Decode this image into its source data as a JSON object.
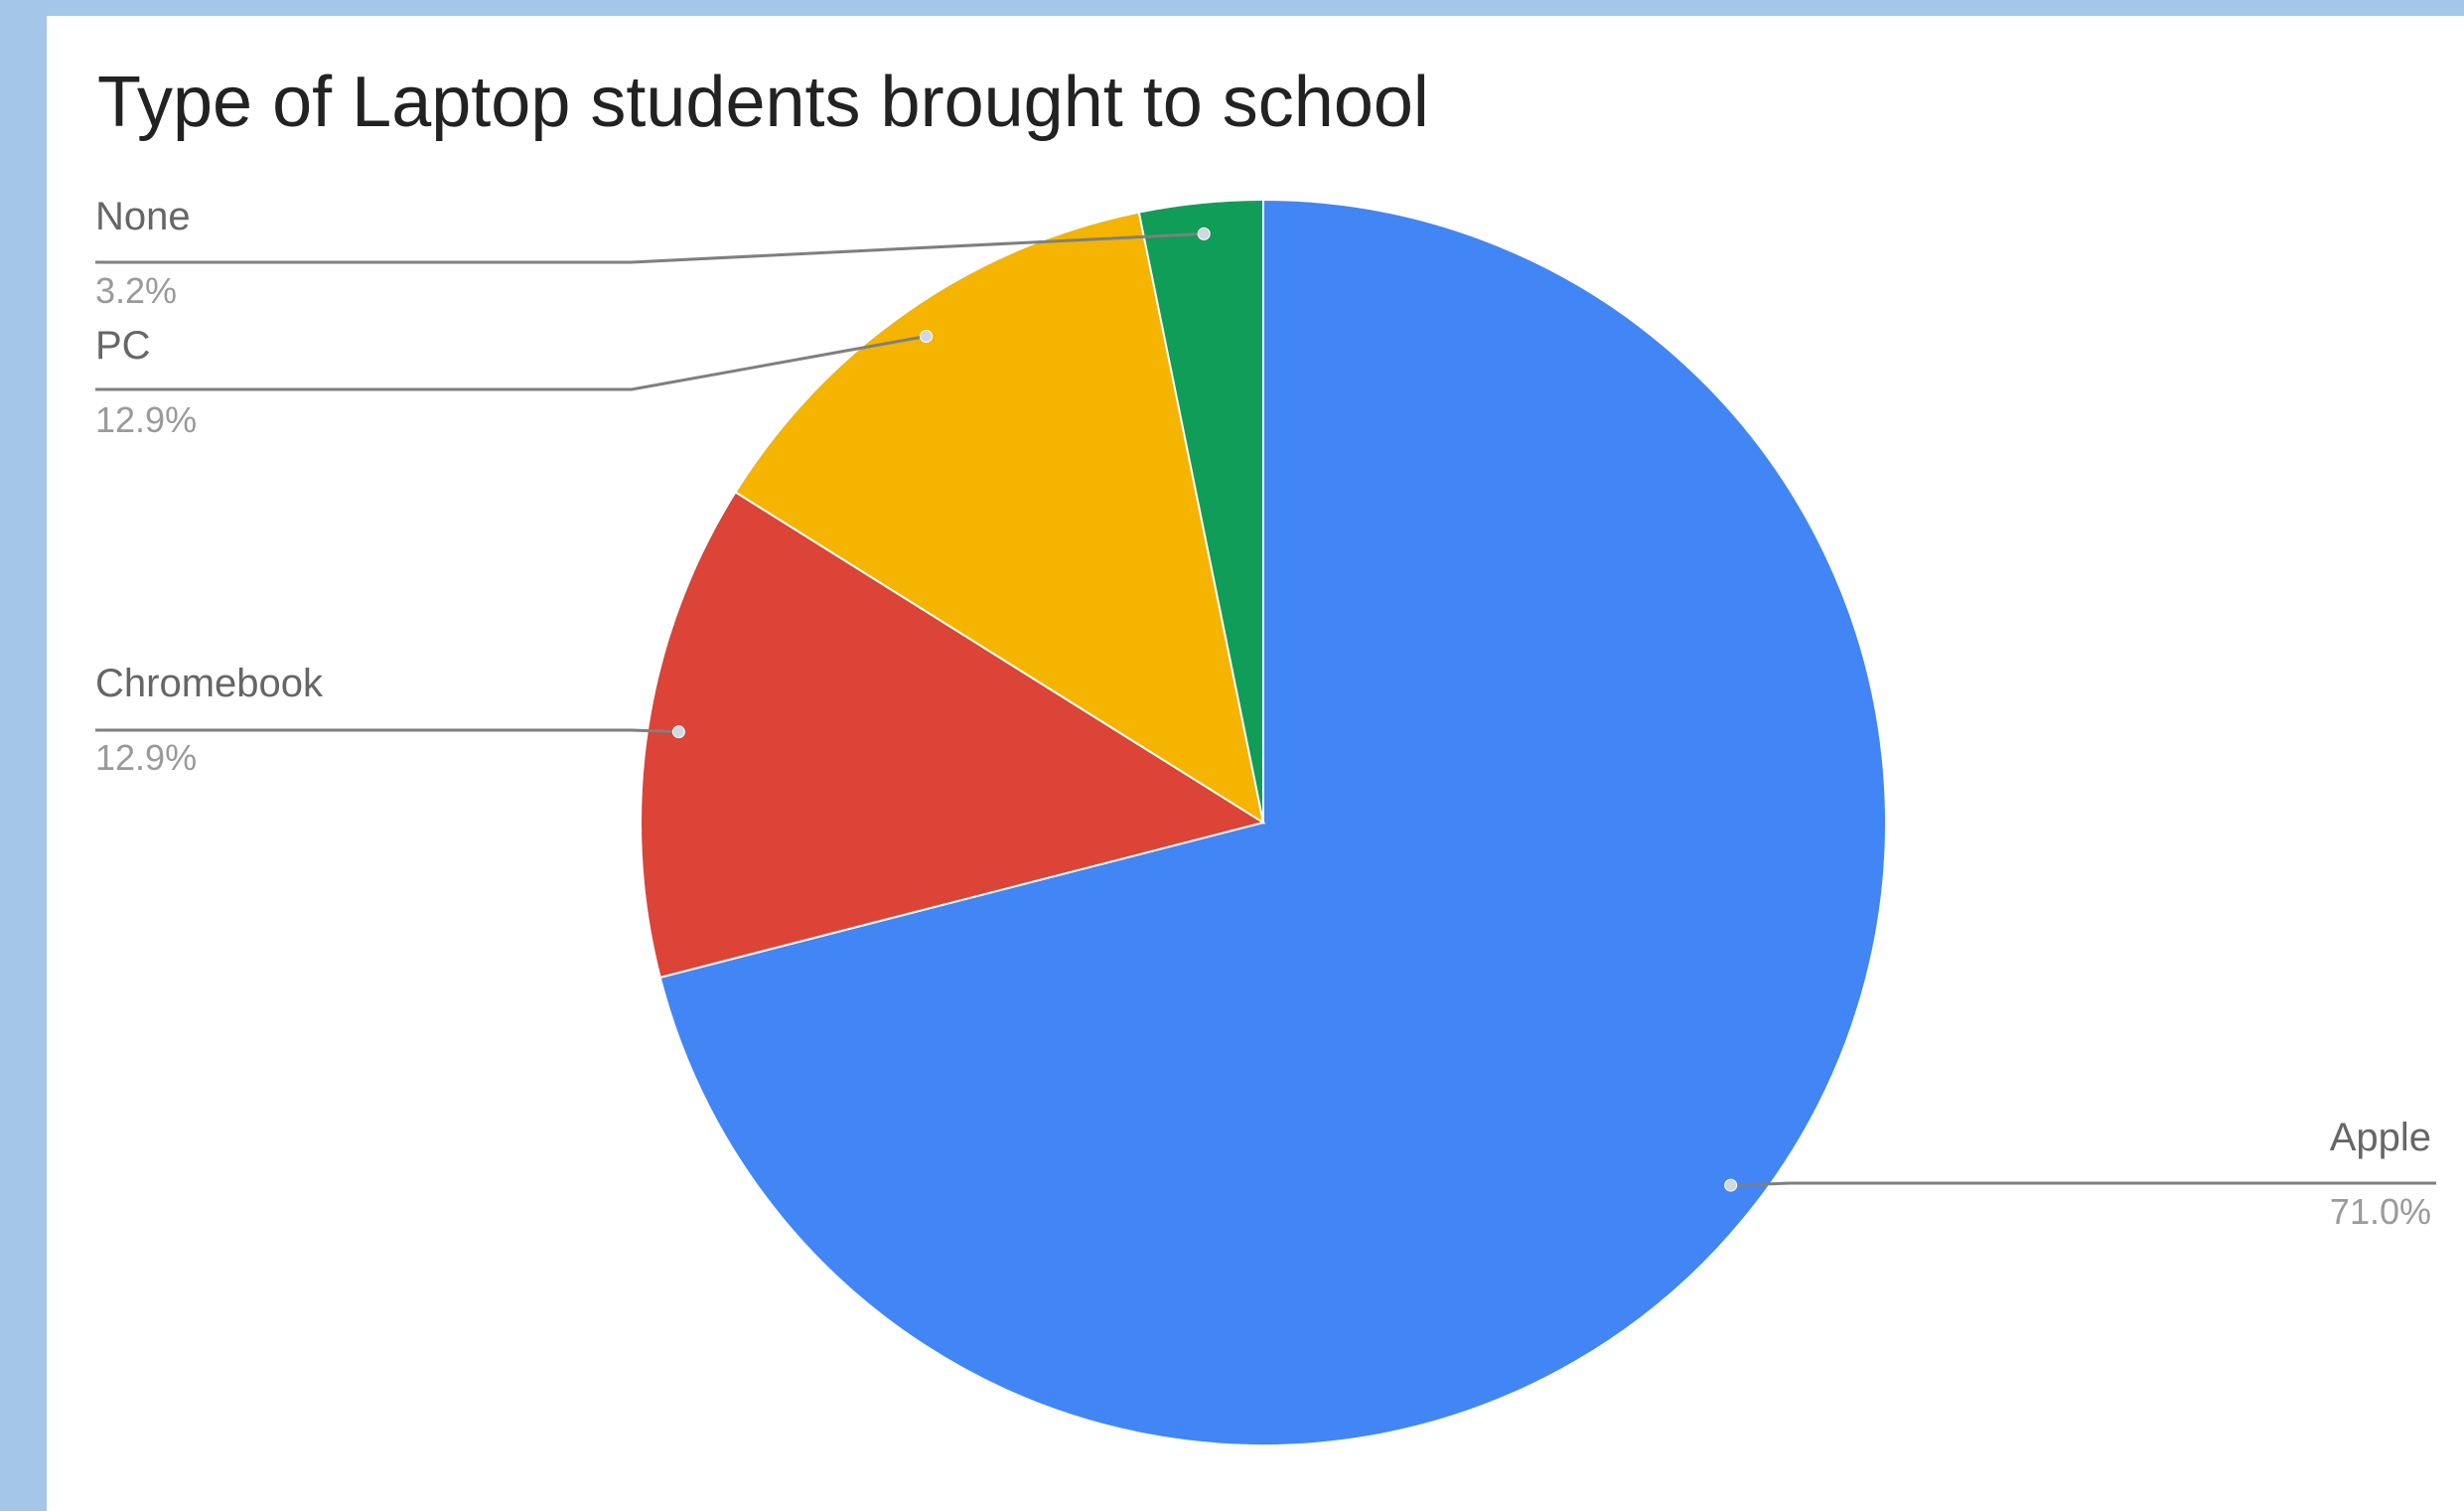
{
  "chart_data": {
    "type": "pie",
    "title": "Type of Laptop students brought to school",
    "start_angle_deg": 0,
    "direction": "clockwise",
    "slices": [
      {
        "label": "Apple",
        "value": 71.0,
        "pct_label": "71.0%",
        "color": "#4285f4"
      },
      {
        "label": "Chromebook",
        "value": 12.9,
        "pct_label": "12.9%",
        "color": "#db4437"
      },
      {
        "label": "PC",
        "value": 12.9,
        "pct_label": "12.9%",
        "color": "#f4b400"
      },
      {
        "label": "None",
        "value": 3.2,
        "pct_label": "3.2%",
        "color": "#0f9d58"
      }
    ],
    "legend": "none (labels shown beside slices with leader lines)"
  }
}
